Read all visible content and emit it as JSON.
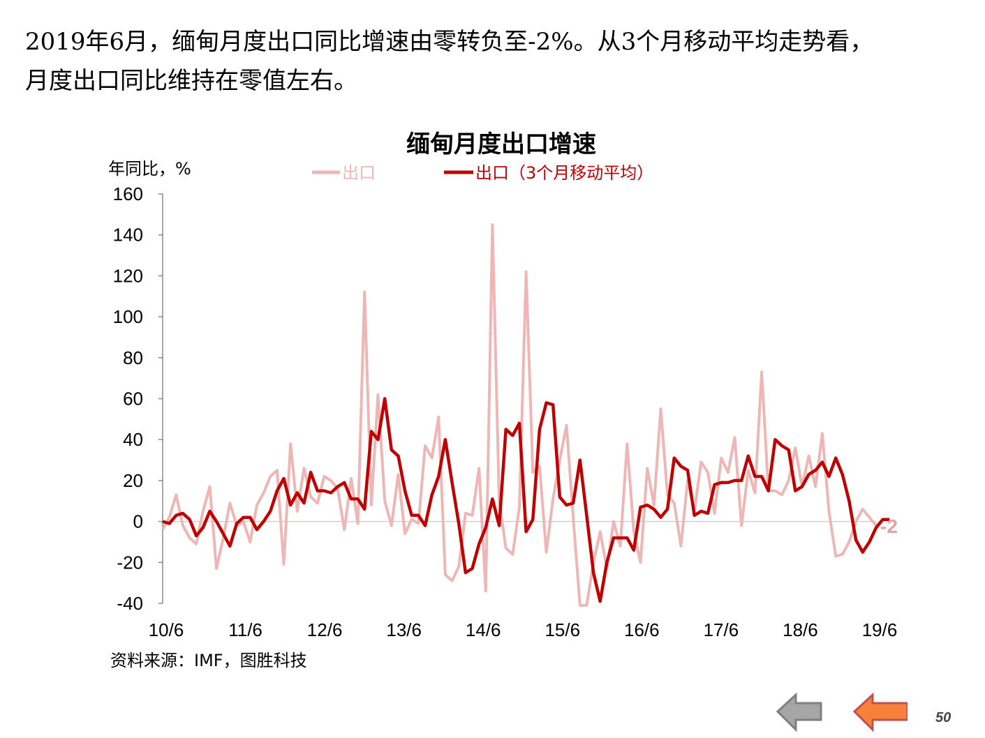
{
  "headline": {
    "line1": "2019年6月，缅甸月度出口同比增速由零转负至-2%。从3个月移动平均走势看，",
    "line2": "月度出口同比维持在零值左右。"
  },
  "chart_data": {
    "type": "line",
    "title": "缅甸月度出口增速",
    "ylabel": "年同比，%",
    "ylim": [
      -40,
      160
    ],
    "yticks": [
      160,
      140,
      120,
      100,
      80,
      60,
      40,
      20,
      0,
      -20,
      -40
    ],
    "xtick_labels": [
      "10/6",
      "11/6",
      "12/6",
      "13/6",
      "14/6",
      "15/6",
      "16/6",
      "17/6",
      "18/6",
      "19/6"
    ],
    "x_start": "2010-06",
    "x_end": "2019-06",
    "legend_position": "top",
    "grid": false,
    "end_label": "-2",
    "source": "资料来源：IMF，图胜科技",
    "series": [
      {
        "name": "出口",
        "color": "#EFB6B6",
        "values": [
          -4,
          2,
          13,
          -2,
          -8,
          -11,
          5,
          17,
          -23,
          -8,
          9,
          -2,
          0,
          -10,
          8,
          14,
          22,
          25,
          -21,
          38,
          5,
          26,
          12,
          9,
          22,
          20,
          16,
          -4,
          21,
          -1,
          112,
          8,
          62,
          10,
          -2,
          23,
          -6,
          1,
          -1,
          37,
          31,
          51,
          -26,
          -29,
          -22,
          4,
          3,
          26,
          -34,
          145,
          10,
          -13,
          -16,
          7,
          122,
          24,
          27,
          -15,
          11,
          30,
          47,
          2,
          -41,
          -41,
          -20,
          -5,
          -23,
          0,
          -12,
          38,
          -5,
          -20,
          26,
          8,
          55,
          13,
          9,
          -12,
          20,
          5,
          29,
          24,
          4,
          31,
          24,
          41,
          -2,
          25,
          14,
          73,
          15,
          15,
          13,
          20,
          36,
          17,
          32,
          17,
          43,
          5,
          -17,
          -16,
          -10,
          0,
          6,
          2,
          -2
        ]
      },
      {
        "name": "出口（3个月移动平均）",
        "color": "#C00000",
        "values": [
          0,
          -1,
          3,
          4,
          1,
          -7,
          -3,
          5,
          0,
          -6,
          -12,
          -1,
          2,
          2,
          -4,
          0,
          5,
          15,
          21,
          8,
          14,
          9,
          24,
          15,
          15,
          14,
          17,
          19,
          11,
          11,
          6,
          44,
          40,
          60,
          35,
          32,
          15,
          3,
          3,
          -2,
          13,
          22,
          40,
          19,
          -1,
          -25,
          -23,
          -11,
          -3,
          11,
          -2,
          45,
          42,
          48,
          -5,
          1,
          45,
          58,
          57,
          12,
          8,
          9,
          30,
          3,
          -25,
          -39,
          -20,
          -8,
          -8,
          -8,
          -14,
          7,
          8,
          6,
          2,
          6,
          31,
          27,
          25,
          3,
          5,
          4,
          18,
          19,
          19,
          20,
          20,
          32,
          22,
          22,
          15,
          40,
          37,
          35,
          15,
          17,
          23,
          25,
          29,
          22,
          31,
          23,
          10,
          -9,
          -15,
          -10,
          -3,
          1,
          1
        ]
      }
    ]
  },
  "navigation": {
    "back_icon": "arrow-left-gray-icon",
    "forward_icon": "arrow-left-orange-icon",
    "back_color": "#A6A6A6",
    "forward_color": "#F7803A",
    "page_number": "50"
  }
}
